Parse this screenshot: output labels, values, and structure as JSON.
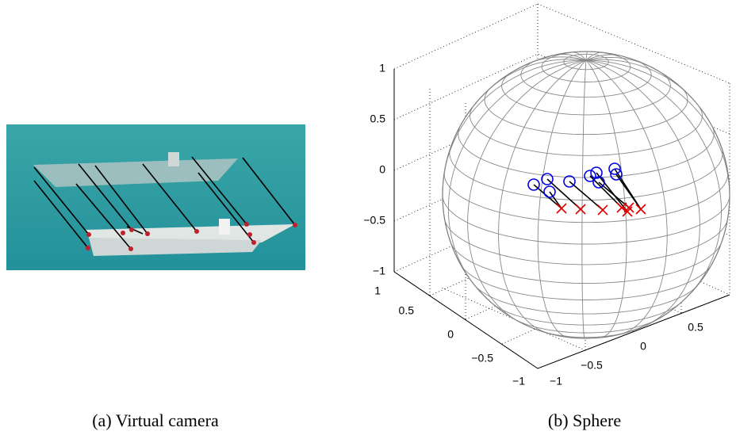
{
  "figure_a": {
    "caption": "(a) Virtual camera"
  },
  "figure_b": {
    "caption": "(b) Sphere",
    "z_ticks": [
      "1",
      "0.5",
      "0",
      "−0.5",
      "−1"
    ],
    "y_ticks": [
      "1",
      "0.5",
      "0",
      "−0.5",
      "−1"
    ],
    "x_ticks": [
      "−1",
      "−0.5",
      "0",
      "0.5"
    ]
  }
}
